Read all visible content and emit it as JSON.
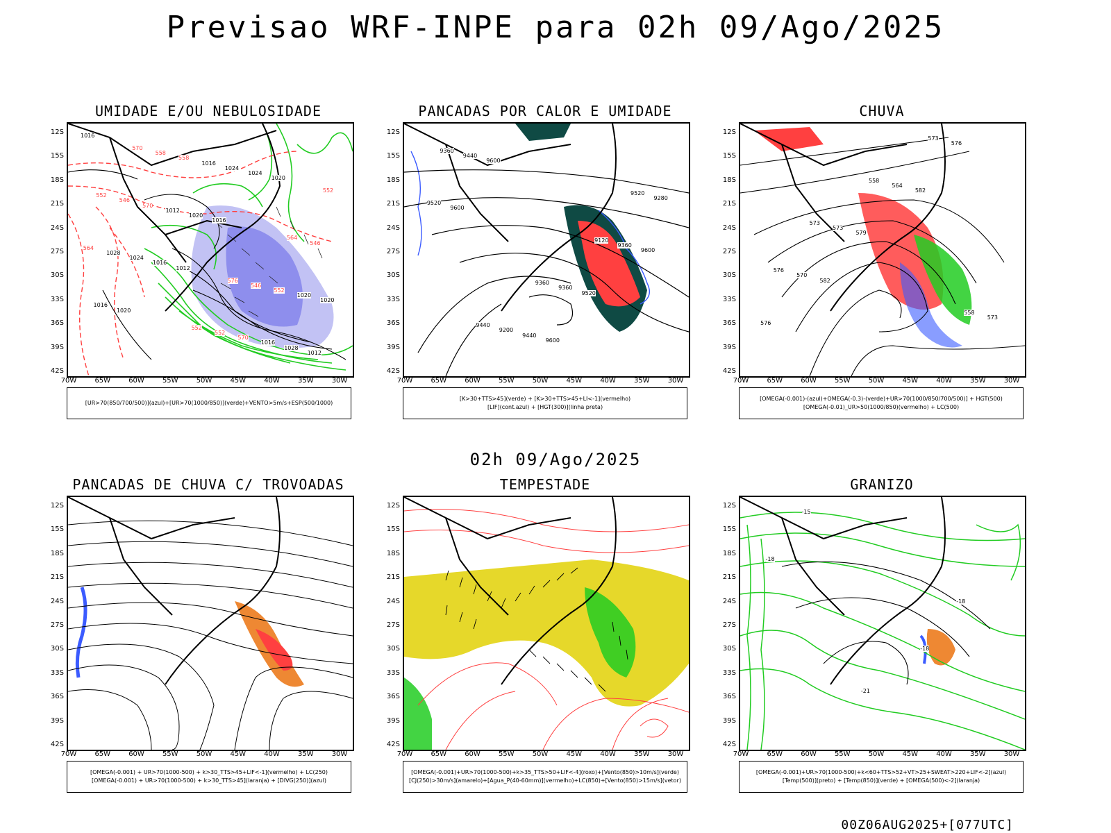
{
  "title": "Previsao WRF-INPE  para 02h 09/Ago/2025",
  "middle_label": "02h 09/Ago/2025",
  "footer": "00Z06AUG2025+[077UTC]",
  "lat_ticks": [
    "12S",
    "15S",
    "18S",
    "21S",
    "24S",
    "27S",
    "30S",
    "33S",
    "36S",
    "39S",
    "42S"
  ],
  "lon_ticks": [
    "70W",
    "65W",
    "60W",
    "55W",
    "50W",
    "45W",
    "40W",
    "35W",
    "30W"
  ],
  "colors": {
    "blue": "#3b5bff",
    "green": "#22cc22",
    "red": "#ff4040",
    "dark_teal": "#0f4a44",
    "yellow": "#e6d82a",
    "orange": "#ee8833",
    "lavender": "#a8a8f0"
  },
  "panels": [
    {
      "id": "umidade",
      "title": "UMIDADE E/OU NEBULOSIDADE",
      "legend": [
        "[UR>70(850/700/500)](azul)+[UR>70(1000/850)](verde)+VENTO>5m/s+ESP(500/1000)"
      ],
      "labels": [
        "1016",
        "1012",
        "1020",
        "1020",
        "1016",
        "1012",
        "1016",
        "1024",
        "1016",
        "1020",
        "1028",
        "1024",
        "1024",
        "1020",
        "1012",
        "1016",
        "1028",
        "1016",
        "1020",
        "570",
        "570",
        "564",
        "558",
        "552",
        "546",
        "552",
        "546",
        "558",
        "546",
        "552",
        "552",
        "564",
        "570",
        "576",
        "552"
      ]
    },
    {
      "id": "pancadas_calor",
      "title": "PANCADAS POR CALOR E UMIDADE",
      "legend": [
        "[K>30+TTS>45](verde) + [K>30+TTS>45+LI<-1](vermelho)",
        "[LIF](cont.azul) + [HGT(300)](linha preta)"
      ],
      "labels": [
        "9600",
        "9600",
        "9600",
        "9600",
        "9520",
        "9520",
        "9440",
        "9360",
        "9440",
        "9360",
        "9280",
        "9200",
        "9120",
        "9360",
        "9360",
        "9520",
        "9440"
      ]
    },
    {
      "id": "chuva",
      "title": "CHUVA",
      "legend": [
        "[OMEGA(-0.001)-(azul)+OMEGA(-0.3)-(verde)+UR>70(1000/850/700/500)] + HGT(500)",
        "[OMEGA(-0.01)_UR>50(1000/850)(vermelho) + LC(500)"
      ],
      "labels": [
        "582",
        "582",
        "576",
        "579",
        "576",
        "570",
        "564",
        "573",
        "573",
        "573",
        "576",
        "558",
        "558",
        "573"
      ]
    },
    {
      "id": "pancadas_trovoadas",
      "title": "PANCADAS DE CHUVA C/ TROVOADAS",
      "legend": [
        "[OMEGA(-0.001) + UR>70(1000-500) + k>30_TTS>45+LIF<-1](vermelho) + LC(250)",
        "[OMEGA(-0.001) + UR>70(1000-500) + k>30_TTS>45](laranja) + [DIVG(250)](azul)"
      ],
      "labels": []
    },
    {
      "id": "tempestade",
      "title": "TEMPESTADE",
      "legend": [
        "[OMEGA(-0.001)+UR>70(1000-500)+k>35_TTS>50+LIF<-4](roxo)+[Vento(850)>10m/s](verde)",
        "[CJ(250)>30m/s](amarelo)+[Agua_P(40-60mm)](vermelho)+LC(850)+[Vento(850)>15m/s](vetor)"
      ],
      "labels": []
    },
    {
      "id": "granizo",
      "title": "GRANIZO",
      "legend": [
        "[OMEGA(-0.001)+UR>70(1000-500)+k<60+TTS>52+VT>25+SWEAT>220+LIF<-2](azul)",
        "[Temp(500)](preto) + [Temp(850)](verde) + [OMEGA(500)<-2](laranja)"
      ],
      "labels": [
        "-18",
        "-18",
        "-21",
        "-18",
        "-15"
      ]
    }
  ]
}
